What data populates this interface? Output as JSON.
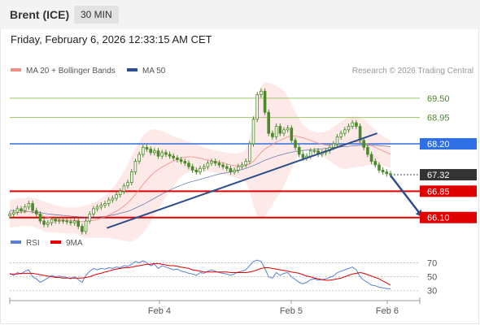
{
  "header": {
    "instrument": "Brent (ICE)",
    "timeframe": "30 MIN",
    "timestamp": "Friday, February 6, 2026 12:33:15 AM CET"
  },
  "legend": {
    "ma20": "MA 20 + Bollinger Bands",
    "ma50": "MA 50",
    "watermark": "Research © 2026 Trading Central",
    "rsi": "RSI",
    "rsi_ma": "9MA"
  },
  "colors": {
    "ma20": "#f28b82",
    "ma50": "#2c4f8c",
    "bb_fill": "#fde2e2",
    "candle": "#4a8a2a",
    "resistance": "#9bc46a",
    "resistance_text": "#4a8a2a",
    "pivot": "#2f6fe4",
    "support": "#e00000",
    "last": "#333333",
    "trendline": "#2c4f8c",
    "rsi": "#5b7fd6",
    "rsi_ma": "#e00000"
  },
  "chart_data": [
    {
      "type": "candlestick",
      "ylim": [
        65.7,
        70.1
      ],
      "x_tick_labels": [
        "Feb 4",
        "Feb 5",
        "Feb 6"
      ],
      "levels": [
        {
          "value": 69.5,
          "label": "69.50",
          "kind": "resistance"
        },
        {
          "value": 68.95,
          "label": "68.95",
          "kind": "resistance"
        },
        {
          "value": 68.2,
          "label": "68.20",
          "kind": "pivot"
        },
        {
          "value": 67.32,
          "label": "67.32",
          "kind": "last"
        },
        {
          "value": 66.85,
          "label": "66.85",
          "kind": "support"
        },
        {
          "value": 66.1,
          "label": "66.10",
          "kind": "support"
        }
      ],
      "close": [
        66.2,
        66.25,
        66.35,
        66.3,
        66.4,
        66.5,
        66.3,
        66.2,
        66.0,
        65.9,
        65.95,
        66.05,
        66.0,
        66.02,
        66.0,
        65.98,
        65.95,
        66.0,
        65.85,
        65.7,
        66.0,
        66.2,
        66.35,
        66.4,
        66.45,
        66.5,
        66.6,
        66.65,
        66.75,
        66.85,
        67.0,
        67.1,
        67.4,
        67.7,
        67.9,
        68.1,
        68.05,
        67.95,
        68.0,
        67.85,
        67.95,
        67.9,
        67.85,
        67.8,
        67.75,
        67.7,
        67.65,
        67.55,
        67.45,
        67.4,
        67.5,
        67.55,
        67.65,
        67.7,
        67.65,
        67.6,
        67.55,
        67.5,
        67.4,
        67.45,
        67.55,
        67.6,
        67.7,
        68.2,
        68.9,
        69.6,
        69.7,
        69.1,
        68.5,
        68.4,
        68.7,
        68.5,
        68.6,
        68.65,
        68.3,
        68.1,
        67.9,
        67.8,
        67.85,
        68.0,
        68.0,
        67.9,
        67.95,
        68.0,
        68.1,
        68.2,
        68.4,
        68.5,
        68.6,
        68.7,
        68.8,
        68.7,
        68.3,
        68.1,
        67.9,
        67.7,
        67.6,
        67.45,
        67.4,
        67.35,
        67.32
      ],
      "ma20": [
        66.2,
        66.22,
        66.24,
        66.25,
        66.26,
        66.27,
        66.25,
        66.22,
        66.18,
        66.13,
        66.1,
        66.08,
        66.06,
        66.04,
        66.03,
        66.02,
        66.02,
        66.02,
        66.01,
        65.98,
        65.98,
        66.0,
        66.02,
        66.05,
        66.08,
        66.12,
        66.17,
        66.22,
        66.28,
        66.35,
        66.43,
        66.52,
        66.63,
        66.76,
        66.9,
        67.04,
        67.17,
        67.29,
        67.39,
        67.47,
        67.54,
        67.6,
        67.66,
        67.71,
        67.76,
        67.8,
        67.82,
        67.83,
        67.83,
        67.81,
        67.79,
        67.76,
        67.74,
        67.72,
        67.7,
        67.68,
        67.66,
        67.63,
        67.6,
        67.58,
        67.57,
        67.57,
        67.58,
        67.62,
        67.7,
        67.82,
        67.95,
        68.05,
        68.12,
        68.18,
        68.25,
        68.3,
        68.35,
        68.4,
        68.42,
        68.42,
        68.4,
        68.37,
        68.34,
        68.3,
        68.26,
        68.22,
        68.19,
        68.17,
        68.16,
        68.16,
        68.16,
        68.17,
        68.19,
        68.22,
        68.25,
        68.26,
        68.25,
        68.23,
        68.2,
        68.15,
        68.1,
        68.05,
        68.0,
        67.95,
        67.9
      ],
      "ma50": [
        66.3,
        66.3,
        66.3,
        66.29,
        66.28,
        66.27,
        66.26,
        66.25,
        66.24,
        66.22,
        66.2,
        66.19,
        66.18,
        66.17,
        66.16,
        66.15,
        66.14,
        66.13,
        66.12,
        66.11,
        66.1,
        66.1,
        66.1,
        66.11,
        66.12,
        66.13,
        66.15,
        66.17,
        66.19,
        66.22,
        66.25,
        66.28,
        66.32,
        66.37,
        66.42,
        66.47,
        66.53,
        66.59,
        66.65,
        66.71,
        66.77,
        66.83,
        66.88,
        66.93,
        66.98,
        67.02,
        67.06,
        67.1,
        67.13,
        67.16,
        67.19,
        67.22,
        67.25,
        67.28,
        67.31,
        67.34,
        67.36,
        67.38,
        67.4,
        67.42,
        67.44,
        67.47,
        67.5,
        67.54,
        67.58,
        67.63,
        67.68,
        67.73,
        67.77,
        67.81,
        67.85,
        67.88,
        67.91,
        67.94,
        67.96,
        67.98,
        68.0,
        68.01,
        68.02,
        68.03,
        68.04,
        68.05,
        68.06,
        68.07,
        68.08,
        68.09,
        68.1,
        68.11,
        68.12,
        68.13,
        68.14,
        68.15,
        68.16,
        68.16,
        68.16,
        68.16,
        68.16,
        68.15,
        68.14,
        68.13,
        68.12
      ],
      "bb_upper": [
        66.6,
        66.62,
        66.65,
        66.65,
        66.66,
        66.68,
        66.66,
        66.63,
        66.6,
        66.56,
        66.52,
        66.48,
        66.45,
        66.42,
        66.4,
        66.39,
        66.39,
        66.39,
        66.4,
        66.42,
        66.44,
        66.48,
        66.52,
        66.58,
        66.64,
        66.72,
        66.82,
        66.94,
        67.08,
        67.24,
        67.42,
        67.62,
        67.84,
        68.06,
        68.26,
        68.42,
        68.54,
        68.6,
        68.62,
        68.6,
        68.56,
        68.52,
        68.47,
        68.42,
        68.38,
        68.34,
        68.3,
        68.26,
        68.22,
        68.18,
        68.14,
        68.1,
        68.07,
        68.04,
        68.01,
        67.99,
        67.97,
        67.95,
        67.93,
        67.92,
        67.93,
        67.96,
        68.05,
        68.4,
        68.95,
        69.5,
        69.85,
        69.95,
        69.95,
        69.9,
        69.85,
        69.8,
        69.7,
        69.55,
        69.35,
        69.1,
        68.9,
        68.75,
        68.65,
        68.58,
        68.54,
        68.52,
        68.52,
        68.55,
        68.6,
        68.68,
        68.76,
        68.84,
        68.9,
        68.95,
        68.98,
        68.98,
        68.95,
        68.9,
        68.8,
        68.7,
        68.6,
        68.5,
        68.42,
        68.36,
        68.3
      ],
      "bb_lower": [
        65.8,
        65.82,
        65.83,
        65.85,
        65.86,
        65.86,
        65.84,
        65.81,
        65.76,
        65.7,
        65.68,
        65.68,
        65.67,
        65.66,
        65.66,
        65.65,
        65.65,
        65.65,
        65.62,
        65.54,
        65.52,
        65.52,
        65.52,
        65.52,
        65.52,
        65.52,
        65.52,
        65.5,
        65.48,
        65.46,
        65.44,
        65.42,
        65.42,
        65.46,
        65.54,
        65.66,
        65.8,
        65.98,
        66.16,
        66.34,
        66.52,
        66.68,
        66.85,
        67.0,
        67.14,
        67.26,
        67.34,
        67.4,
        67.44,
        67.44,
        67.44,
        67.42,
        67.41,
        67.4,
        67.39,
        67.37,
        67.35,
        67.31,
        67.27,
        67.24,
        67.21,
        67.18,
        67.11,
        66.84,
        66.45,
        66.14,
        66.05,
        66.15,
        66.29,
        66.46,
        66.65,
        66.8,
        67.0,
        67.25,
        67.49,
        67.74,
        67.9,
        67.99,
        68.03,
        68.02,
        67.98,
        67.92,
        67.86,
        67.79,
        67.72,
        67.64,
        67.56,
        67.5,
        67.48,
        67.49,
        67.52,
        67.54,
        67.55,
        67.56,
        67.6,
        67.6,
        67.6,
        67.6,
        67.58,
        67.54,
        67.5
      ],
      "trendlines": [
        {
          "from": [
            0.255,
            65.8
          ],
          "to": [
            0.965,
            68.5
          ]
        }
      ],
      "arrow": {
        "from": [
          1.0,
          67.3
        ],
        "to": [
          1.085,
          66.1
        ]
      }
    },
    {
      "type": "line",
      "title": "RSI",
      "ylim": [
        25,
        80
      ],
      "y_ticks": [
        70,
        50,
        30
      ],
      "rsi": [
        55,
        52,
        56,
        54,
        58,
        60,
        50,
        47,
        42,
        45,
        48,
        52,
        50,
        51,
        50,
        49,
        47,
        50,
        46,
        42,
        52,
        58,
        62,
        60,
        62,
        61,
        63,
        62,
        64,
        63,
        66,
        65,
        68,
        72,
        70,
        73,
        70,
        66,
        68,
        62,
        66,
        64,
        62,
        60,
        61,
        58,
        57,
        55,
        54,
        52,
        56,
        55,
        58,
        60,
        58,
        56,
        55,
        54,
        52,
        54,
        57,
        58,
        60,
        66,
        72,
        74,
        72,
        62,
        50,
        48,
        56,
        52,
        55,
        56,
        50,
        46,
        42,
        40,
        42,
        46,
        47,
        45,
        46,
        47,
        49,
        51,
        56,
        58,
        60,
        62,
        64,
        60,
        50,
        45,
        42,
        38,
        37,
        35,
        34,
        33,
        33
      ],
      "rsi_ma": [
        54,
        54,
        54,
        55,
        55,
        55,
        55,
        54,
        53,
        52,
        51,
        50,
        49,
        49,
        48,
        48,
        48,
        48,
        48,
        48,
        49,
        50,
        52,
        54,
        55,
        57,
        58,
        60,
        61,
        62,
        63,
        63,
        64,
        65,
        66,
        67,
        68,
        68,
        69,
        69,
        68,
        67,
        66,
        66,
        65,
        64,
        63,
        62,
        60,
        59,
        58,
        57,
        57,
        57,
        57,
        57,
        57,
        57,
        56,
        56,
        56,
        56,
        56,
        57,
        58,
        60,
        62,
        63,
        63,
        62,
        61,
        60,
        59,
        58,
        57,
        56,
        55,
        53,
        51,
        50,
        48,
        47,
        46,
        45,
        45,
        46,
        47,
        48,
        50,
        52,
        54,
        55,
        56,
        55,
        53,
        51,
        49,
        47,
        44,
        41,
        38
      ]
    }
  ]
}
